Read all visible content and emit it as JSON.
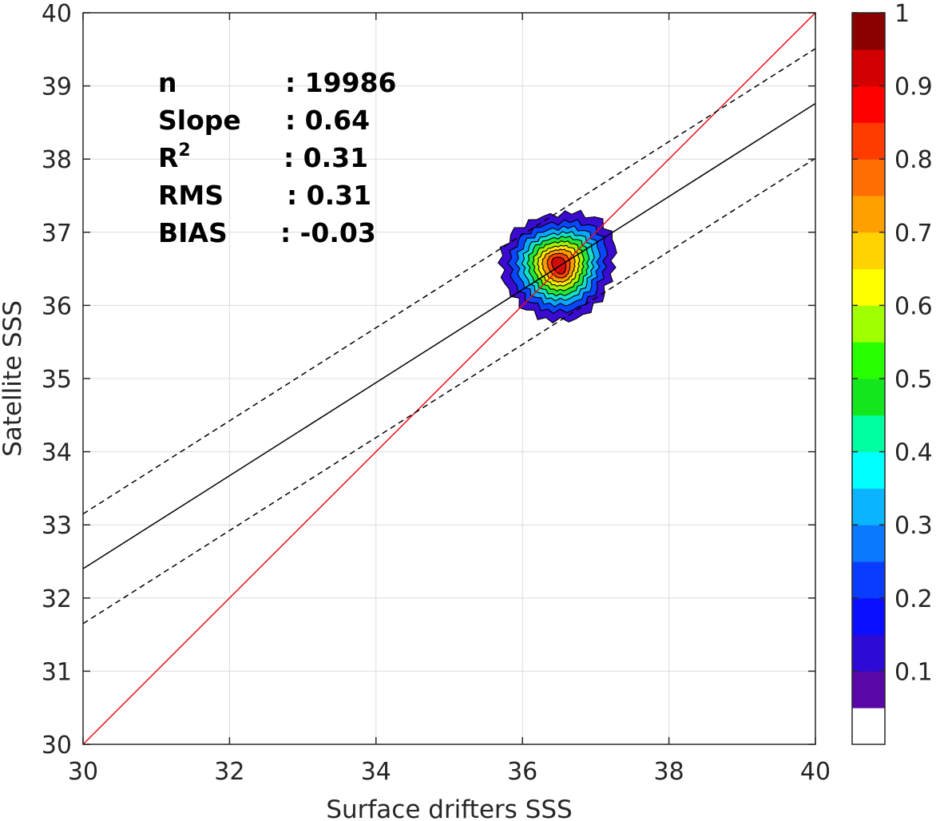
{
  "chart_data": {
    "type": "contour",
    "xlabel": "Surface drifters SSS",
    "ylabel": "Satellite SSS",
    "xlim": [
      30,
      40
    ],
    "ylim": [
      30,
      40
    ],
    "xticks": [
      "30",
      "32",
      "34",
      "36",
      "38",
      "40"
    ],
    "yticks": [
      "30",
      "31",
      "32",
      "33",
      "34",
      "35",
      "36",
      "37",
      "38",
      "39",
      "40"
    ],
    "grid": true,
    "stats": [
      {
        "label": "n",
        "value": ": 19986"
      },
      {
        "label": "Slope",
        "value": ": 0.64"
      },
      {
        "label": "R",
        "superscript": "2",
        "value": ": 0.31"
      },
      {
        "label": "RMS",
        "value": ": 0.31"
      },
      {
        "label": "BIAS",
        "value": ": -0.03"
      }
    ],
    "lines": [
      {
        "name": "one-to-one",
        "color": "#e8101a",
        "style": "solid",
        "points": [
          [
            30,
            30
          ],
          [
            40,
            40
          ]
        ]
      },
      {
        "name": "regression",
        "color": "#000000",
        "style": "solid",
        "points": [
          [
            30,
            32.4
          ],
          [
            40,
            38.76
          ]
        ]
      },
      {
        "name": "regression-upper",
        "color": "#000000",
        "style": "dashed",
        "points": [
          [
            30,
            33.15
          ],
          [
            40,
            39.51
          ]
        ]
      },
      {
        "name": "regression-lower",
        "color": "#000000",
        "style": "dashed",
        "points": [
          [
            30,
            31.65
          ],
          [
            40,
            38.01
          ]
        ]
      }
    ],
    "contour_levels": [
      {
        "level": 0.05,
        "color": "#3a0bd0",
        "cx": 36.5,
        "cy": 36.55,
        "rx": 0.78,
        "ry": 0.72
      },
      {
        "level": 0.15,
        "color": "#0a45ff",
        "cx": 36.5,
        "cy": 36.55,
        "rx": 0.66,
        "ry": 0.6
      },
      {
        "level": 0.25,
        "color": "#0aa6ff",
        "cx": 36.5,
        "cy": 36.55,
        "rx": 0.56,
        "ry": 0.52
      },
      {
        "level": 0.35,
        "color": "#15e0c8",
        "cx": 36.5,
        "cy": 36.55,
        "rx": 0.48,
        "ry": 0.45
      },
      {
        "level": 0.45,
        "color": "#22e63a",
        "cx": 36.5,
        "cy": 36.55,
        "rx": 0.41,
        "ry": 0.39
      },
      {
        "level": 0.55,
        "color": "#a4f000",
        "cx": 36.5,
        "cy": 36.55,
        "rx": 0.34,
        "ry": 0.33
      },
      {
        "level": 0.65,
        "color": "#ffe600",
        "cx": 36.5,
        "cy": 36.55,
        "rx": 0.28,
        "ry": 0.27
      },
      {
        "level": 0.75,
        "color": "#ff9a00",
        "cx": 36.5,
        "cy": 36.55,
        "rx": 0.22,
        "ry": 0.22
      },
      {
        "level": 0.85,
        "color": "#ff4500",
        "cx": 36.5,
        "cy": 36.55,
        "rx": 0.15,
        "ry": 0.17
      },
      {
        "level": 0.95,
        "color": "#d20a0a",
        "cx": 36.5,
        "cy": 36.55,
        "rx": 0.09,
        "ry": 0.12
      }
    ],
    "colorbar": {
      "ticks": [
        "0.1",
        "0.2",
        "0.3",
        "0.4",
        "0.5",
        "0.6",
        "0.7",
        "0.8",
        "0.9",
        "1"
      ],
      "colors": [
        "#ffffff",
        "#5a07a8",
        "#2e0ad6",
        "#0a10ff",
        "#0a3cff",
        "#0a78ff",
        "#0ab4ff",
        "#00ffff",
        "#00ffa0",
        "#14e61e",
        "#28ff00",
        "#a0ff00",
        "#ffff00",
        "#ffd200",
        "#ffa000",
        "#ff6e00",
        "#ff3c00",
        "#ff0000",
        "#d20000",
        "#8b0000"
      ]
    }
  }
}
